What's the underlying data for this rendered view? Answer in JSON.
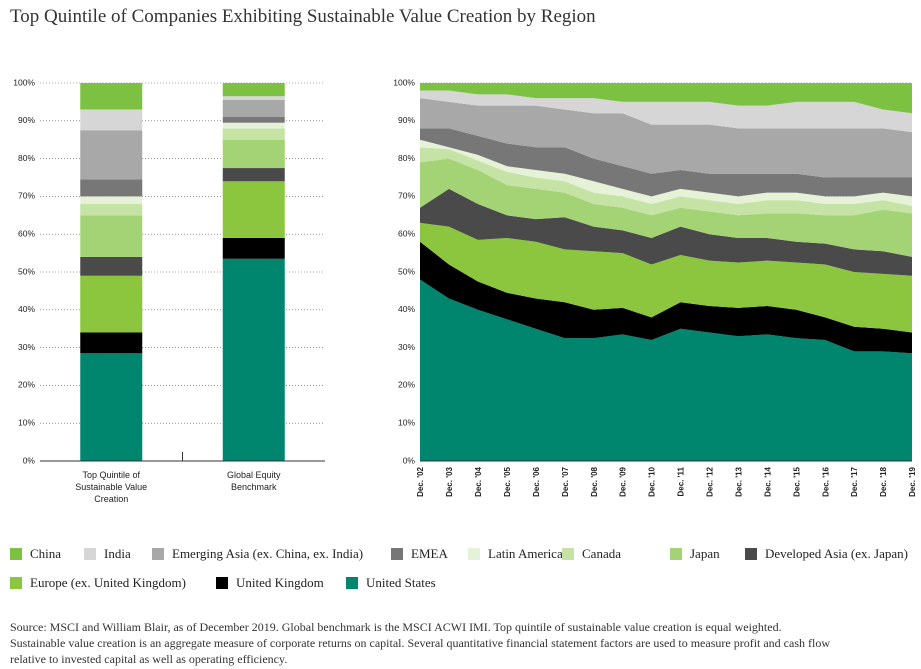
{
  "title": "Top Quintile of Companies Exhibiting Sustainable Value Creation by Region",
  "chart_data": [
    {
      "type": "stacked-bar",
      "categories": [
        "Top Quintile of Sustainable Value Creation",
        "Global Equity Benchmark"
      ],
      "ylim": [
        0,
        100
      ],
      "yticks": [
        {
          "value": 0,
          "label": "0%"
        },
        {
          "value": 10,
          "label": "10%"
        },
        {
          "value": 20,
          "label": "20%"
        },
        {
          "value": 30,
          "label": "30%"
        },
        {
          "value": 40,
          "label": "40%"
        },
        {
          "value": 50,
          "label": "50%"
        },
        {
          "value": 60,
          "label": "60%"
        },
        {
          "value": 70,
          "label": "70%"
        },
        {
          "value": 80,
          "label": "80%"
        },
        {
          "value": 90,
          "label": "90%"
        },
        {
          "value": 100,
          "label": "100%"
        }
      ],
      "series": [
        {
          "name": "United States",
          "color": "#00856f",
          "values": [
            28.5,
            53.5
          ]
        },
        {
          "name": "United Kingdom",
          "color": "#000000",
          "values": [
            5.5,
            5.5
          ]
        },
        {
          "name": "Europe (ex. United Kingdom)",
          "color": "#8cc63f",
          "values": [
            15,
            15
          ]
        },
        {
          "name": "Developed Asia (ex. Japan)",
          "color": "#4a4a4a",
          "values": [
            5,
            3.5
          ]
        },
        {
          "name": "Japan",
          "color": "#a3d374",
          "values": [
            11,
            7.5
          ]
        },
        {
          "name": "Canada",
          "color": "#c6e3a6",
          "values": [
            3,
            3
          ]
        },
        {
          "name": "Latin America",
          "color": "#e6f2d8",
          "values": [
            2,
            1.5
          ]
        },
        {
          "name": "EMEA",
          "color": "#777777",
          "values": [
            4.5,
            1.5
          ]
        },
        {
          "name": "Emerging Asia (ex. China, ex. India)",
          "color": "#a8a8a8",
          "values": [
            13,
            4.5
          ]
        },
        {
          "name": "India",
          "color": "#d6d6d6",
          "values": [
            5.5,
            1
          ]
        },
        {
          "name": "China",
          "color": "#7cc142",
          "values": [
            7,
            3.5
          ]
        }
      ]
    },
    {
      "type": "stacked-area",
      "categories": [
        "Dec. '02",
        "Dec. '03",
        "Dec. '04",
        "Dec. '05",
        "Dec. '06",
        "Dec. '07",
        "Dec. '08",
        "Dec. '09",
        "Dec. '10",
        "Dec. '11",
        "Dec. '12",
        "Dec. '13",
        "Dec. '14",
        "Dec. '15",
        "Dec. '16",
        "Dec. '17",
        "Dec. '18",
        "Dec. '19"
      ],
      "ylim": [
        0,
        100
      ],
      "yticks": [
        {
          "value": 0,
          "label": "0%"
        },
        {
          "value": 10,
          "label": "10%"
        },
        {
          "value": 20,
          "label": "20%"
        },
        {
          "value": 30,
          "label": "30%"
        },
        {
          "value": 40,
          "label": "40%"
        },
        {
          "value": 50,
          "label": "50%"
        },
        {
          "value": 60,
          "label": "60%"
        },
        {
          "value": 70,
          "label": "70%"
        },
        {
          "value": 80,
          "label": "80%"
        },
        {
          "value": 90,
          "label": "90%"
        },
        {
          "value": 100,
          "label": "100%"
        }
      ],
      "series": [
        {
          "name": "United States",
          "color": "#00856f",
          "values": [
            48,
            43,
            40,
            37.5,
            35,
            32.5,
            32.5,
            33.5,
            32,
            35,
            34,
            33,
            33.5,
            32.5,
            32,
            29,
            29,
            28.5
          ]
        },
        {
          "name": "United Kingdom",
          "color": "#000000",
          "values": [
            10,
            9,
            7.5,
            7,
            8,
            9.5,
            7.5,
            7,
            6,
            7,
            7,
            7.5,
            7.5,
            7.5,
            6,
            6.5,
            6,
            5.5
          ]
        },
        {
          "name": "Europe (ex. United Kingdom)",
          "color": "#8cc63f",
          "values": [
            5,
            10,
            11,
            14.5,
            15,
            14,
            15.5,
            14.5,
            14,
            12.5,
            12,
            12,
            12,
            12.5,
            14,
            14.5,
            14.5,
            15
          ]
        },
        {
          "name": "Developed Asia (ex. Japan)",
          "color": "#4a4a4a",
          "values": [
            4,
            10,
            9.5,
            6,
            6,
            8.5,
            6.5,
            6,
            7,
            7.5,
            7,
            6.5,
            6,
            5.5,
            5.5,
            6,
            6,
            5
          ]
        },
        {
          "name": "Japan",
          "color": "#a3d374",
          "values": [
            12,
            8,
            9,
            8,
            8,
            6.5,
            6,
            6,
            6,
            5,
            6,
            6,
            6.5,
            7.5,
            7.5,
            9,
            11,
            11.5
          ]
        },
        {
          "name": "Canada",
          "color": "#c6e3a6",
          "values": [
            4,
            2.5,
            2.5,
            3.5,
            3,
            3,
            3,
            3,
            3,
            3,
            3,
            3,
            3.5,
            3.5,
            3,
            3,
            2.5,
            2
          ]
        },
        {
          "name": "Latin America",
          "color": "#e6f2d8",
          "values": [
            2,
            0.5,
            1.5,
            1.5,
            2,
            2,
            3,
            2,
            2,
            2,
            2,
            2,
            2,
            2,
            2,
            2,
            2,
            2.5
          ]
        },
        {
          "name": "EMEA",
          "color": "#777777",
          "values": [
            3,
            5,
            5,
            6,
            6,
            7,
            6,
            6,
            6,
            5,
            5,
            6,
            5,
            5,
            5,
            5,
            4,
            5
          ]
        },
        {
          "name": "Emerging Asia (ex. China, ex. India)",
          "color": "#a8a8a8",
          "values": [
            8,
            7,
            8,
            10,
            11,
            10,
            12,
            14,
            13,
            12,
            13,
            12,
            12,
            12,
            13,
            13,
            13,
            12
          ]
        },
        {
          "name": "India",
          "color": "#d6d6d6",
          "values": [
            2,
            3,
            3,
            3,
            2,
            3,
            4,
            3,
            6,
            6,
            6,
            6,
            6,
            7,
            7,
            7,
            5,
            5
          ]
        },
        {
          "name": "China",
          "color": "#7cc142",
          "values": [
            2,
            2,
            3,
            3,
            4,
            4,
            4,
            5,
            5,
            5,
            5,
            6,
            6,
            5,
            5,
            5,
            7,
            8
          ]
        }
      ]
    }
  ],
  "source": [
    "Source: MSCI and William Blair, as of December 2019. Global benchmark is the MSCI ACWI IMI. Top quintile of sustainable value creation is equal weighted.",
    "Sustainable value creation is an aggregate measure of corporate returns on capital. Several quantitative financial statement factors are used to measure profit and cash flow",
    "relative to invested capital as well as operating efficiency."
  ]
}
